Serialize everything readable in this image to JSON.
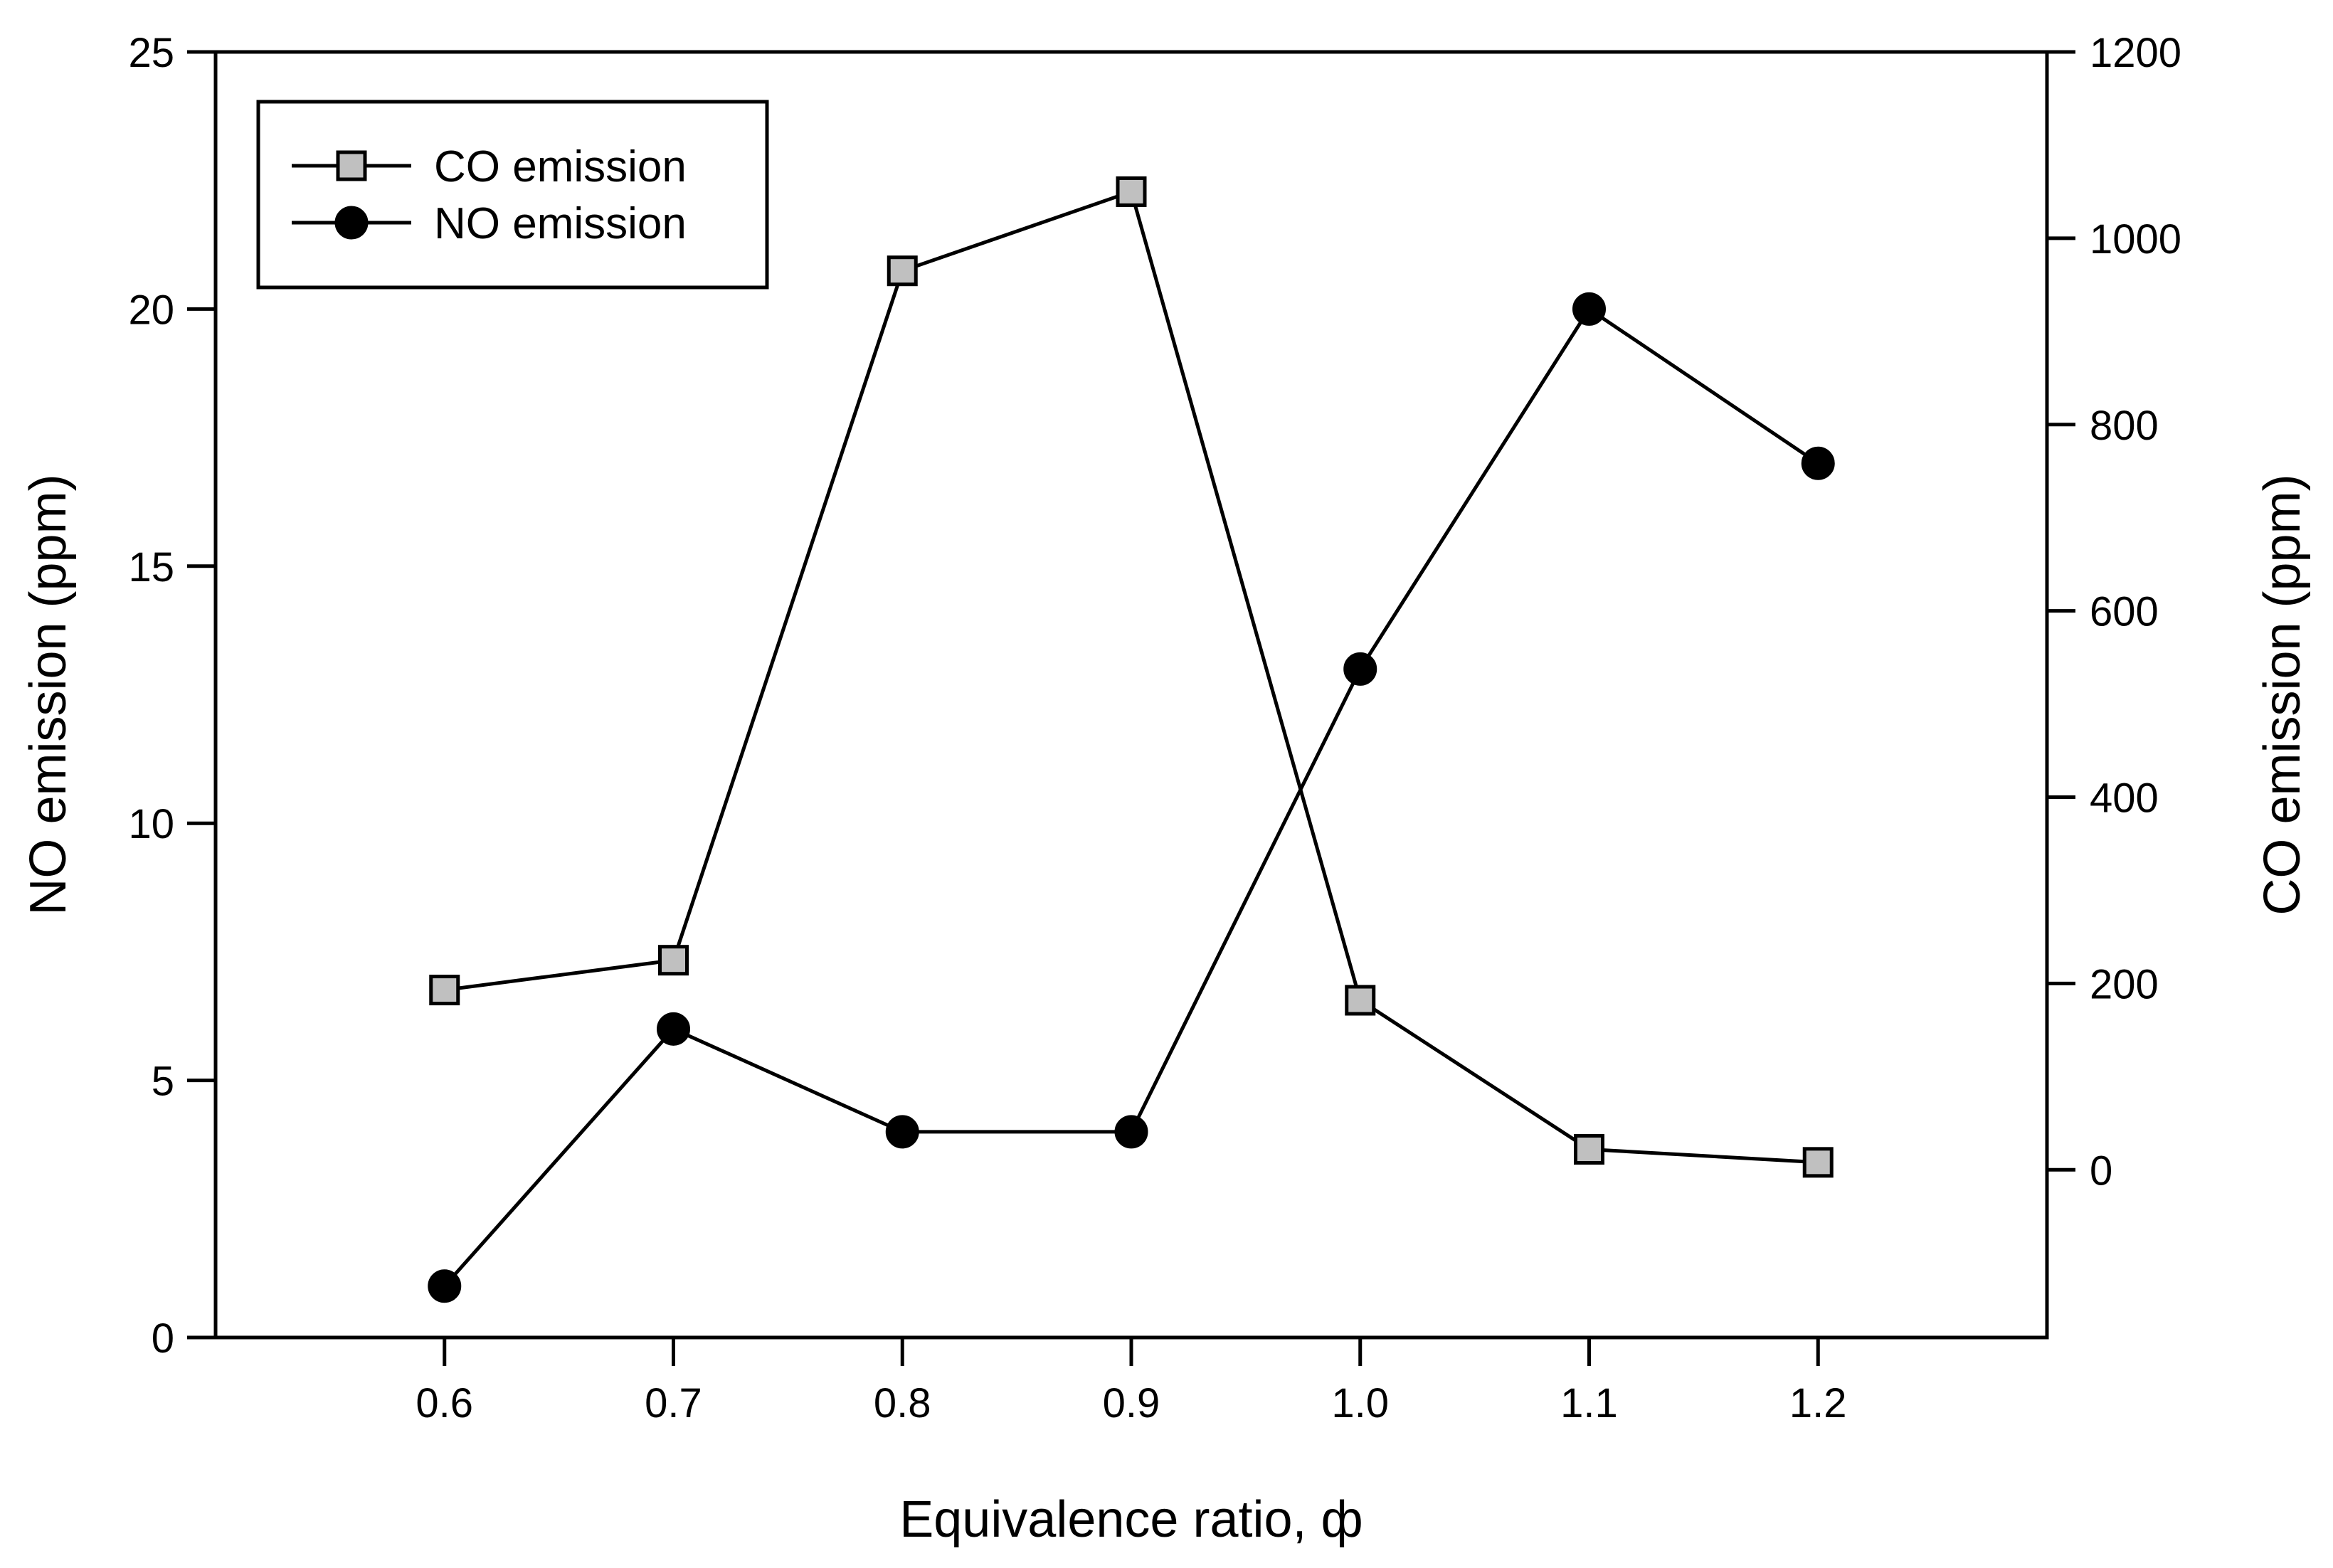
{
  "chart_data": {
    "type": "line",
    "title": "",
    "xlabel": "Equivalence ratio, ф",
    "ylabel_left": "NO emission (ppm)",
    "ylabel_right": "CO emission (ppm)",
    "x": [
      0.6,
      0.7,
      0.8,
      0.9,
      1.0,
      1.1,
      1.2
    ],
    "x_tick_labels": [
      "0.6",
      "0.7",
      "0.8",
      "0.9",
      "1.0",
      "1.1",
      "1.2"
    ],
    "xlim": [
      0.5,
      1.3
    ],
    "ylim_left": [
      0,
      25
    ],
    "y_ticks_left": [
      0,
      5,
      10,
      15,
      20,
      25
    ],
    "y_tick_labels_left": [
      "0",
      "5",
      "10",
      "15",
      "20",
      "25"
    ],
    "ylim_right": [
      -180,
      1200
    ],
    "y_ticks_right": [
      0,
      200,
      400,
      600,
      800,
      1000,
      1200
    ],
    "y_tick_labels_right": [
      "0",
      "200",
      "400",
      "600",
      "800",
      "1000",
      "1200"
    ],
    "grid": false,
    "legend_position": "top-left",
    "series": [
      {
        "name": "CO emission",
        "axis": "right",
        "marker": "square",
        "marker_color": "#c0c0c0",
        "line_color": "#000000",
        "values": [
          193,
          225,
          965,
          1050,
          182,
          22,
          8
        ]
      },
      {
        "name": "NO emission",
        "axis": "left",
        "marker": "circle",
        "marker_color": "#000000",
        "line_color": "#000000",
        "values": [
          1,
          6,
          4,
          4,
          13,
          20,
          17
        ]
      }
    ]
  }
}
